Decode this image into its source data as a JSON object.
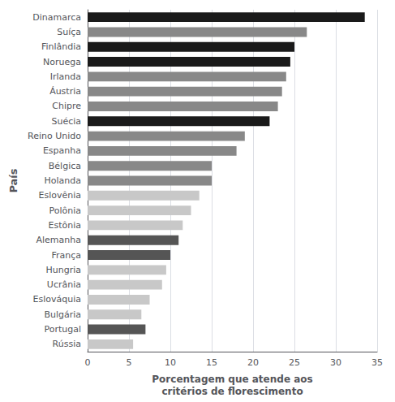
{
  "chart_data": {
    "type": "bar",
    "orientation": "horizontal",
    "categories": [
      "Dinamarca",
      "Suíça",
      "Finlândia",
      "Noruega",
      "Irlanda",
      "Áustria",
      "Chipre",
      "Suécia",
      "Reino Unido",
      "Espanha",
      "Bélgica",
      "Holanda",
      "Eslovênia",
      "Polônia",
      "Estônia",
      "Alemanha",
      "França",
      "Hungria",
      "Ucrânia",
      "Eslováquia",
      "Bulgária",
      "Portugal",
      "Rússia"
    ],
    "values": [
      33.5,
      26.5,
      25.0,
      24.5,
      24.0,
      23.5,
      23.0,
      22.0,
      19.0,
      18.0,
      15.0,
      15.0,
      13.5,
      12.5,
      11.5,
      11.0,
      10.0,
      9.5,
      9.0,
      7.5,
      6.5,
      7.0,
      5.5
    ],
    "colors": [
      "#1a1a1a",
      "#888888",
      "#1a1a1a",
      "#1a1a1a",
      "#888888",
      "#888888",
      "#888888",
      "#1a1a1a",
      "#888888",
      "#888888",
      "#888888",
      "#888888",
      "#c8c8c8",
      "#c8c8c8",
      "#c8c8c8",
      "#555555",
      "#555555",
      "#c8c8c8",
      "#c8c8c8",
      "#c8c8c8",
      "#c8c8c8",
      "#555555",
      "#c8c8c8"
    ],
    "xlabel": "Porcentagem que atende aos\ncritérios de florescimento",
    "ylabel": "País",
    "xlim": [
      0,
      35
    ],
    "xticks": [
      0,
      5,
      10,
      15,
      20,
      25,
      30,
      35
    ],
    "grid": true
  }
}
